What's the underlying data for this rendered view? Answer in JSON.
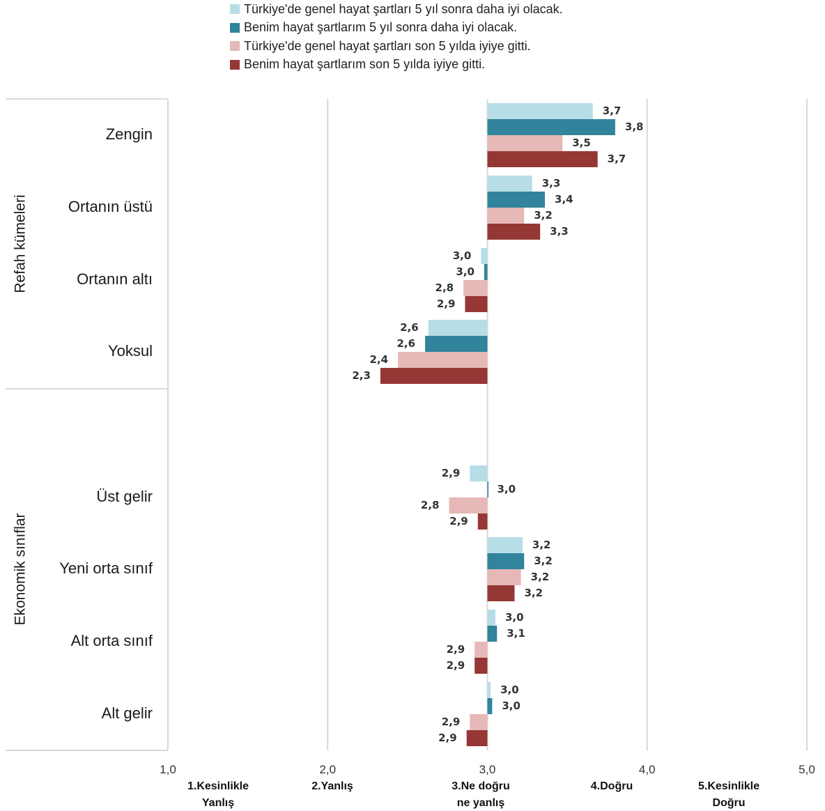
{
  "chart_data": {
    "type": "bar",
    "orientation": "horizontal",
    "baseline": 3.0,
    "xlim": [
      1.0,
      5.0
    ],
    "x_ticks": [
      "1,0",
      "2,0",
      "3,0",
      "4,0",
      "5,0"
    ],
    "scale_labels": [
      [
        "1.Kesinlikle",
        "Yanlış"
      ],
      [
        "2.Yanlış"
      ],
      [
        "3.Ne doğru",
        "ne yanlış"
      ],
      [
        "4.Doğru"
      ],
      [
        "5.Kesinlikle",
        "Doğru"
      ]
    ],
    "series": [
      {
        "name": "Türkiye'de genel hayat şartları 5 yıl sonra daha iyi olacak.",
        "color": "#b7dde7"
      },
      {
        "name": "Benim hayat şartlarım 5 yıl sonra daha iyi olacak.",
        "color": "#31849b"
      },
      {
        "name": "Türkiye'de genel hayat şartları son 5 yılda iyiye gitti.",
        "color": "#e6b8b7"
      },
      {
        "name": "Benim hayat şartlarım son 5 yılda iyiye gitti.",
        "color": "#953735"
      }
    ],
    "groups": [
      {
        "name": "Refah kümeleri",
        "categories": [
          {
            "label": "Zengin",
            "values": [
              3.66,
              3.8,
              3.47,
              3.69
            ],
            "labels": [
              "3,7",
              "3,8",
              "3,5",
              "3,7"
            ]
          },
          {
            "label": "Ortanın üstü",
            "values": [
              3.28,
              3.36,
              3.23,
              3.33
            ],
            "labels": [
              "3,3",
              "3,4",
              "3,2",
              "3,3"
            ]
          },
          {
            "label": "Ortanın altı",
            "values": [
              2.96,
              2.98,
              2.85,
              2.86
            ],
            "labels": [
              "3,0",
              "3,0",
              "2,8",
              "2,9"
            ]
          },
          {
            "label": "Yoksul",
            "values": [
              2.63,
              2.61,
              2.44,
              2.33
            ],
            "labels": [
              "2,6",
              "2,6",
              "2,4",
              "2,3"
            ]
          }
        ]
      },
      {
        "name": "Ekonomik sınıflar",
        "categories": [
          {
            "label": "Üst gelir",
            "values": [
              2.89,
              3.0,
              2.76,
              2.94
            ],
            "labels": [
              "2,9",
              "3,0",
              "2,8",
              "2,9"
            ]
          },
          {
            "label": "Yeni orta sınıf",
            "values": [
              3.22,
              3.23,
              3.21,
              3.17
            ],
            "labels": [
              "3,2",
              "3,2",
              "3,2",
              "3,2"
            ]
          },
          {
            "label": "Alt orta sınıf",
            "values": [
              3.05,
              3.06,
              2.92,
              2.92
            ],
            "labels": [
              "3,0",
              "3,1",
              "2,9",
              "2,9"
            ]
          },
          {
            "label": "Alt gelir",
            "values": [
              3.02,
              3.03,
              2.89,
              2.87
            ],
            "labels": [
              "3,0",
              "3,0",
              "2,9",
              "2,9"
            ]
          }
        ]
      }
    ]
  }
}
